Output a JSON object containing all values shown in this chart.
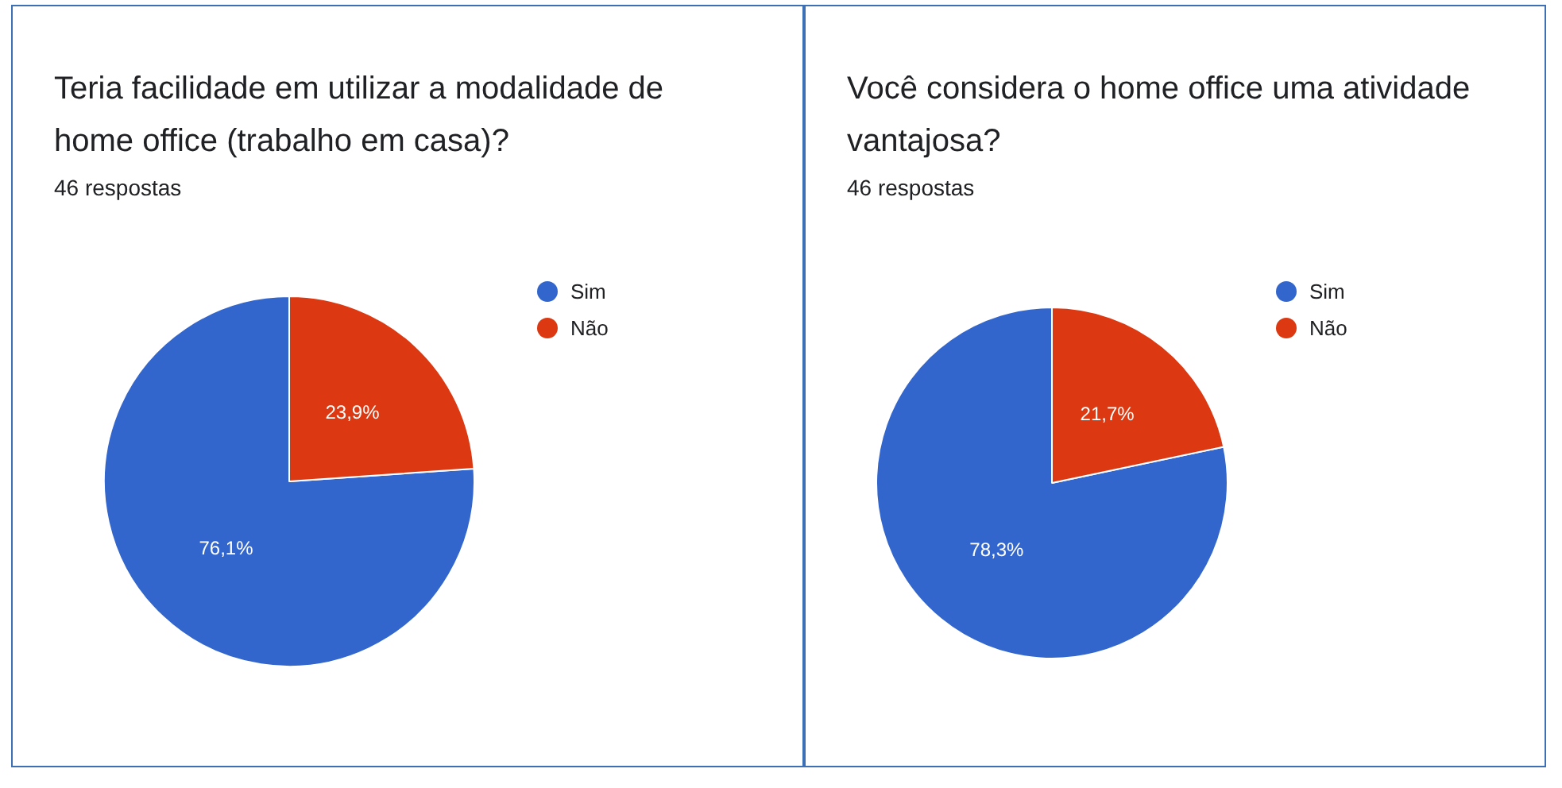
{
  "chart_data": [
    {
      "type": "pie",
      "title": "Teria facilidade em utilizar a modalidade de home office (trabalho em casa)?",
      "subtitle": "46 respostas",
      "categories": [
        "Sim",
        "Não"
      ],
      "values": [
        76.1,
        23.9
      ],
      "colors": [
        "#3366cc",
        "#dc3912"
      ],
      "value_labels": [
        "76,1%",
        "23,9%"
      ],
      "legend": "right"
    },
    {
      "type": "pie",
      "title": "Você considera o home office uma atividade vantajosa?",
      "subtitle": "46 respostas",
      "categories": [
        "Sim",
        "Não"
      ],
      "values": [
        78.3,
        21.7
      ],
      "colors": [
        "#3366cc",
        "#dc3912"
      ],
      "value_labels": [
        "78,3%",
        "21,7%"
      ],
      "legend": "right"
    }
  ]
}
